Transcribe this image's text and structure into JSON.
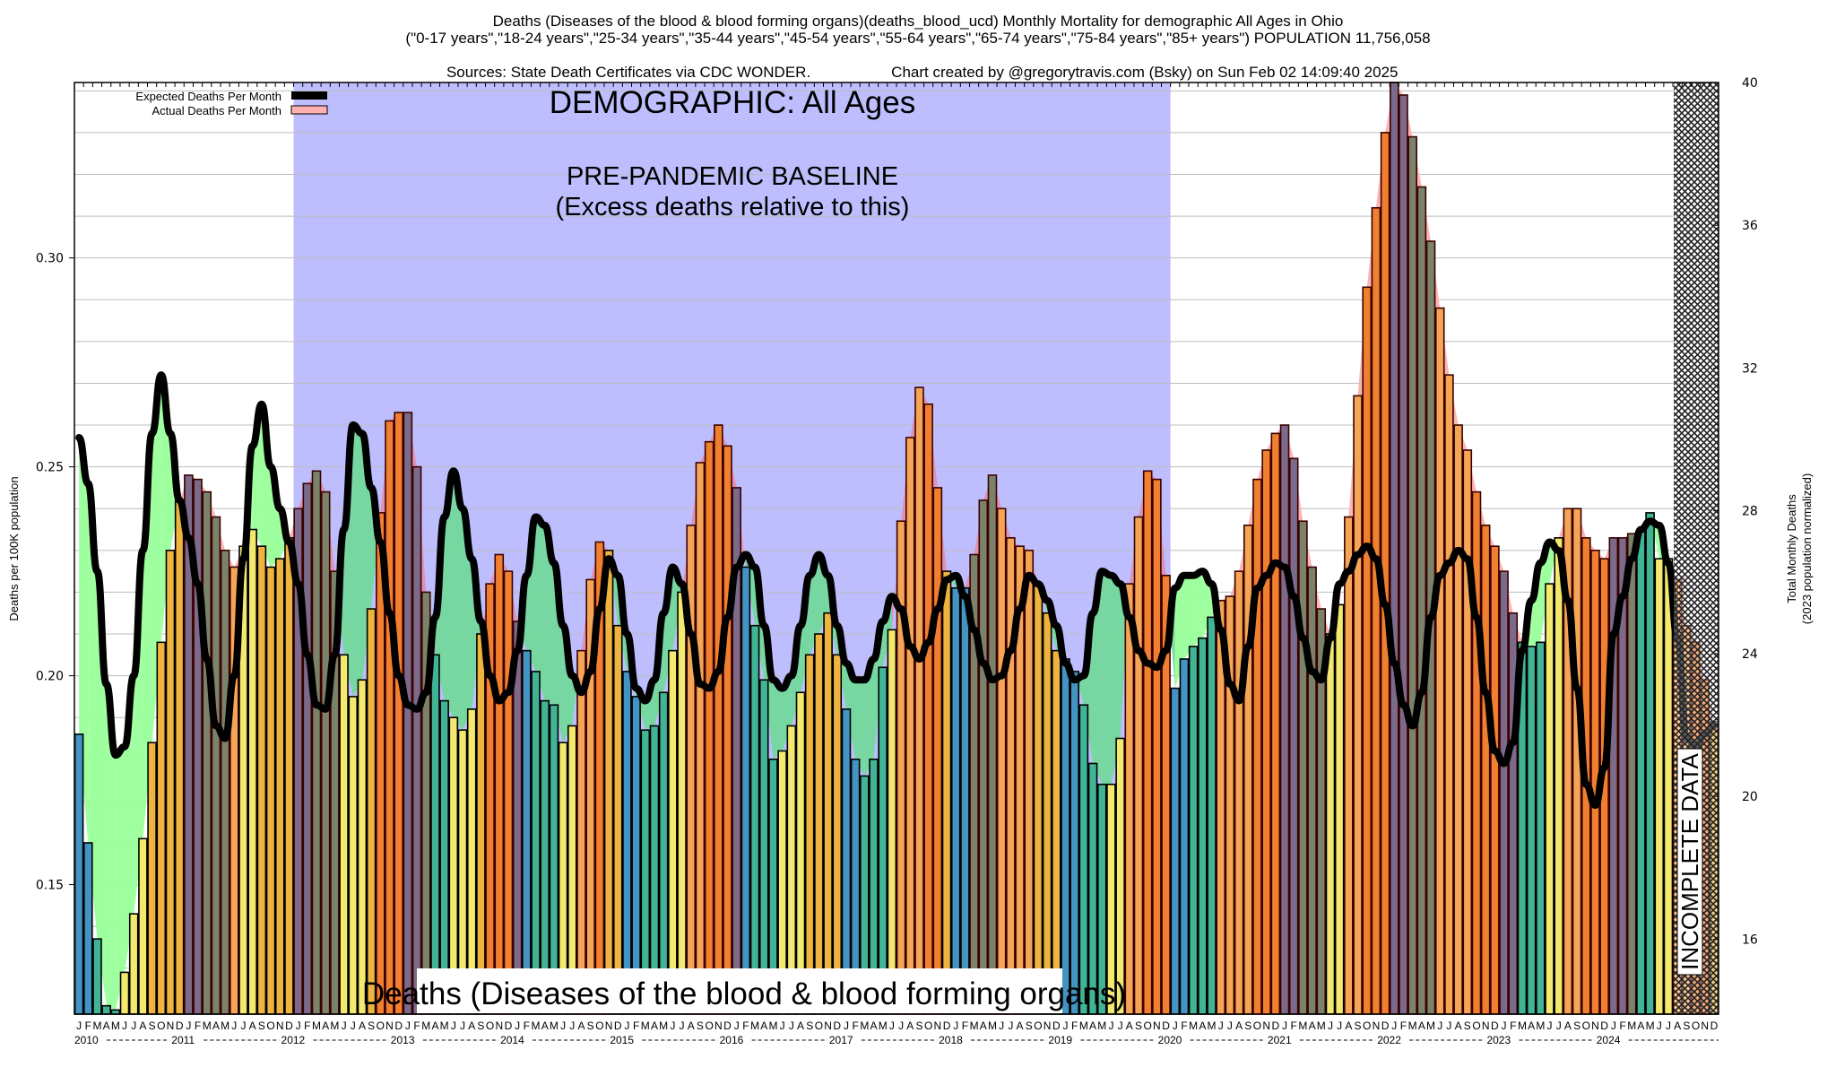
{
  "header": {
    "title_line1": "Deaths (Diseases of the blood & blood forming organs)(deaths_blood_ucd) Monthly Mortality for demographic All Ages in Ohio",
    "title_line2": "(\"0-17 years\",\"18-24 years\",\"25-34 years\",\"35-44 years\",\"45-54 years\",\"55-64 years\",\"65-74 years\",\"75-84 years\",\"85+ years\") POPULATION 11,756,058",
    "title_line3_left": "Sources: State Death Certificates via CDC WONDER.",
    "title_line3_right": "Chart created by @gregorytravis.com (Bsky) on Sun Feb 02 14:09:40 2025"
  },
  "colors": {
    "baseline_region": "#bebeff",
    "deficit_fill": "#99ff99",
    "excess_fill": "#ffb0b0",
    "expected_line": "#000000",
    "month_winter": "#4393c3",
    "month_spring": "#40b494",
    "month_summer": "#f3e96f",
    "month_fall": "#eeb43f",
    "excess_bar": "#f08030",
    "incomplete_hatch": "#888888"
  },
  "chart_data": {
    "type": "bar",
    "title": "Deaths (Diseases of the blood & blood forming organs) Monthly Mortality, All Ages, Ohio",
    "ylabel": "Deaths per 100K population",
    "y2label_line1": "Total Monthly Deaths",
    "y2label_line2": "(2023 population normalized)",
    "ylim": [
      0.119,
      0.342
    ],
    "y2lim": [
      13.9,
      40
    ],
    "yticks": [
      0.15,
      0.2,
      0.25,
      0.3
    ],
    "ytick_labels": [
      "0.15",
      "0.20",
      "0.25",
      "0.30"
    ],
    "y2ticks": [
      16,
      20,
      24,
      28,
      32,
      36,
      40
    ],
    "y2tick_labels": [
      "16",
      "20",
      "24",
      "28",
      "32",
      "36",
      "40"
    ],
    "grid": true,
    "legend_position": "top-left",
    "legend": [
      {
        "label": "Expected Deaths Per Month",
        "style": "line"
      },
      {
        "label": "Actual Deaths Per Month",
        "style": "area"
      }
    ],
    "annotations": {
      "demographic": "DEMOGRAPHIC: All Ages",
      "baseline_title": "PRE-PANDEMIC BASELINE",
      "baseline_subtitle": "(Excess deaths relative to this)",
      "baseline_range": [
        "2012-01",
        "2019-12"
      ],
      "incomplete_label": "INCOMPLETE DATA",
      "incomplete_range": [
        "2024-07",
        "2024-12"
      ],
      "cause_label": "Deaths (Diseases of the blood & blood forming organs)"
    },
    "month_letters": [
      "J",
      "F",
      "M",
      "A",
      "M",
      "J",
      "J",
      "A",
      "S",
      "O",
      "N",
      "D"
    ],
    "years": [
      "2010",
      "2011",
      "2012",
      "2013",
      "2014",
      "2015",
      "2016",
      "2017",
      "2018",
      "2019",
      "2020",
      "2021",
      "2022",
      "2023",
      "2024"
    ],
    "series": [
      {
        "name": "Actual Deaths Per Month",
        "values": [
          0.186,
          0.16,
          0.137,
          0.121,
          0.12,
          0.129,
          0.143,
          0.161,
          0.184,
          0.208,
          0.23,
          0.242,
          0.248,
          0.247,
          0.244,
          0.238,
          0.23,
          0.226,
          0.231,
          0.235,
          0.231,
          0.226,
          0.228,
          0.233,
          0.24,
          0.246,
          0.249,
          0.244,
          0.225,
          0.205,
          0.195,
          0.199,
          0.216,
          0.239,
          0.261,
          0.263,
          0.263,
          0.25,
          0.22,
          0.205,
          0.194,
          0.19,
          0.187,
          0.192,
          0.21,
          0.222,
          0.229,
          0.225,
          0.213,
          0.206,
          0.201,
          0.194,
          0.193,
          0.184,
          0.188,
          0.206,
          0.223,
          0.232,
          0.23,
          0.212,
          0.201,
          0.195,
          0.187,
          0.188,
          0.196,
          0.206,
          0.22,
          0.236,
          0.251,
          0.256,
          0.26,
          0.255,
          0.245,
          0.226,
          0.212,
          0.199,
          0.18,
          0.182,
          0.188,
          0.196,
          0.205,
          0.21,
          0.215,
          0.205,
          0.192,
          0.18,
          0.176,
          0.18,
          0.202,
          0.211,
          0.237,
          0.257,
          0.269,
          0.265,
          0.245,
          0.225,
          0.221,
          0.221,
          0.229,
          0.242,
          0.248,
          0.24,
          0.233,
          0.231,
          0.23,
          0.222,
          0.215,
          0.206,
          0.204,
          0.201,
          0.193,
          0.179,
          0.174,
          0.174,
          0.185,
          0.222,
          0.238,
          0.249,
          0.247,
          0.224,
          0.197,
          0.204,
          0.207,
          0.209,
          0.214,
          0.218,
          0.219,
          0.225,
          0.236,
          0.247,
          0.254,
          0.258,
          0.26,
          0.252,
          0.237,
          0.226,
          0.216,
          0.21,
          0.217,
          0.238,
          0.267,
          0.293,
          0.312,
          0.33,
          0.342,
          0.339,
          0.329,
          0.317,
          0.304,
          0.288,
          0.272,
          0.26,
          0.254,
          0.244,
          0.236,
          0.231,
          0.225,
          0.215,
          0.208,
          0.207,
          0.208,
          0.222,
          0.233,
          0.24,
          0.24,
          0.233,
          0.23,
          0.228,
          0.233,
          0.233,
          0.234,
          0.235,
          0.239,
          0.228,
          0.228,
          0.223,
          0.212,
          0.208,
          0.199,
          0.189
        ]
      },
      {
        "name": "Expected Deaths Per Month",
        "values": [
          0.257,
          0.246,
          0.225,
          0.198,
          0.181,
          0.183,
          0.2,
          0.23,
          0.258,
          0.272,
          0.258,
          0.242,
          0.233,
          0.222,
          0.204,
          0.188,
          0.185,
          0.2,
          0.228,
          0.255,
          0.265,
          0.25,
          0.24,
          0.232,
          0.222,
          0.205,
          0.193,
          0.192,
          0.205,
          0.235,
          0.26,
          0.258,
          0.245,
          0.232,
          0.215,
          0.2,
          0.193,
          0.192,
          0.196,
          0.214,
          0.238,
          0.249,
          0.24,
          0.228,
          0.213,
          0.2,
          0.194,
          0.196,
          0.206,
          0.224,
          0.238,
          0.236,
          0.227,
          0.212,
          0.2,
          0.196,
          0.201,
          0.216,
          0.228,
          0.224,
          0.21,
          0.197,
          0.194,
          0.199,
          0.215,
          0.226,
          0.222,
          0.21,
          0.198,
          0.197,
          0.201,
          0.214,
          0.226,
          0.229,
          0.226,
          0.212,
          0.199,
          0.197,
          0.2,
          0.212,
          0.224,
          0.229,
          0.224,
          0.212,
          0.203,
          0.199,
          0.199,
          0.204,
          0.213,
          0.219,
          0.216,
          0.207,
          0.204,
          0.208,
          0.216,
          0.223,
          0.224,
          0.219,
          0.211,
          0.203,
          0.199,
          0.2,
          0.206,
          0.216,
          0.224,
          0.222,
          0.218,
          0.212,
          0.203,
          0.199,
          0.2,
          0.215,
          0.225,
          0.224,
          0.222,
          0.214,
          0.206,
          0.203,
          0.202,
          0.206,
          0.221,
          0.224,
          0.224,
          0.225,
          0.222,
          0.211,
          0.198,
          0.194,
          0.207,
          0.221,
          0.224,
          0.227,
          0.226,
          0.219,
          0.209,
          0.201,
          0.199,
          0.209,
          0.222,
          0.225,
          0.229,
          0.231,
          0.228,
          0.217,
          0.203,
          0.193,
          0.188,
          0.196,
          0.214,
          0.224,
          0.227,
          0.23,
          0.228,
          0.214,
          0.196,
          0.182,
          0.179,
          0.184,
          0.206,
          0.218,
          0.227,
          0.232,
          0.23,
          0.218,
          0.197,
          0.174,
          0.169,
          0.178,
          0.21,
          0.219,
          0.228,
          0.235,
          0.237,
          0.236,
          0.227,
          0.209,
          0.185,
          0.183,
          0.186,
          0.188
        ]
      }
    ],
    "excess_colored_bars_note": "Bars above expected are drawn in darker hues within the baseline and post-2019 periods"
  }
}
